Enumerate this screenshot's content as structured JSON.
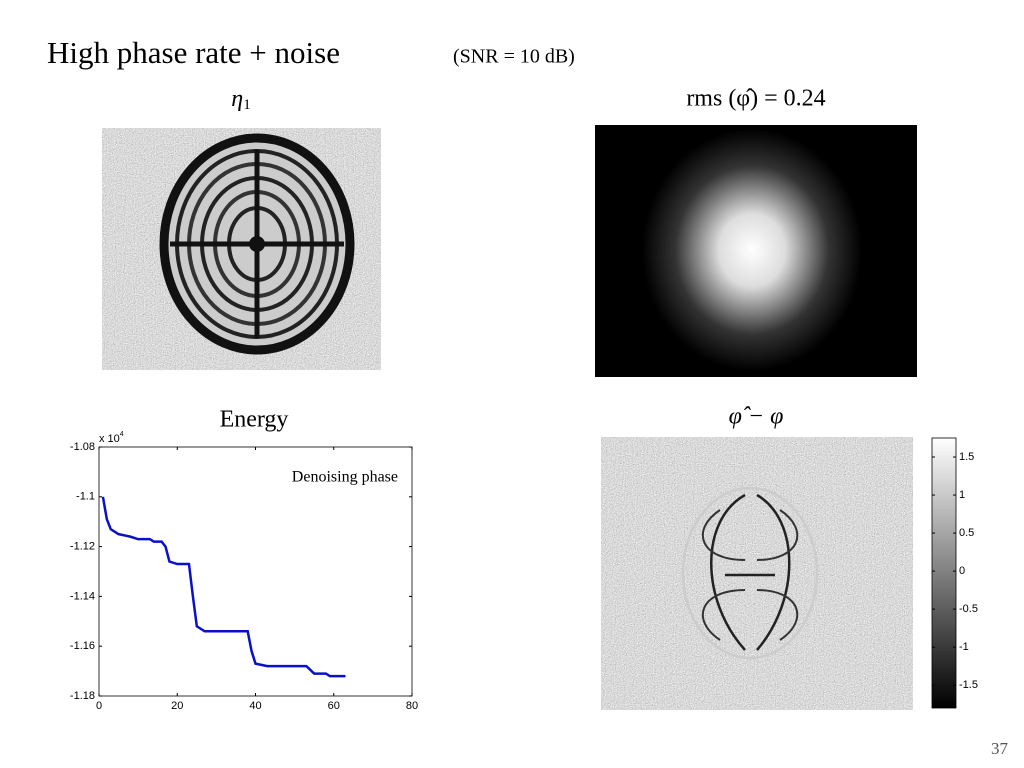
{
  "title": "High phase rate + noise",
  "subtitle": "(SNR = 10 dB)",
  "panel_top_left": {
    "symbol": "η",
    "subscript": "1"
  },
  "panel_top_right": "rms (φ̂) = 0.24",
  "panel_bottom_right": "φ̂ − φ",
  "colorbar": {
    "lim": [
      -1.8,
      1.75
    ],
    "ticks": [
      1.5,
      1,
      0.5,
      0,
      -0.5,
      -1,
      -1.5
    ]
  },
  "page_number": "37",
  "chart_data": {
    "type": "line",
    "title": "Energy",
    "annotation": "Denoising phase",
    "axis_multiplier": {
      "base": "x 10",
      "exponent": "4"
    },
    "x": [
      1,
      2,
      3,
      5,
      8,
      10,
      13,
      14,
      16,
      17,
      18,
      20,
      23,
      24,
      25,
      27,
      30,
      38,
      39,
      40,
      43,
      53,
      55,
      58,
      59,
      63
    ],
    "values": [
      -1.1,
      -1.109,
      -1.113,
      -1.115,
      -1.116,
      -1.117,
      -1.117,
      -1.118,
      -1.118,
      -1.12,
      -1.126,
      -1.127,
      -1.127,
      -1.14,
      -1.152,
      -1.154,
      -1.154,
      -1.154,
      -1.162,
      -1.167,
      -1.168,
      -1.168,
      -1.171,
      -1.171,
      -1.172,
      -1.172
    ],
    "color": "#0a10c8",
    "xlim": [
      0,
      80
    ],
    "ylim": [
      -1.18,
      -1.08
    ],
    "xticks": [
      0,
      20,
      40,
      60,
      80
    ],
    "yticks": [
      -1.08,
      -1.1,
      -1.12,
      -1.14,
      -1.16,
      -1.18
    ]
  }
}
